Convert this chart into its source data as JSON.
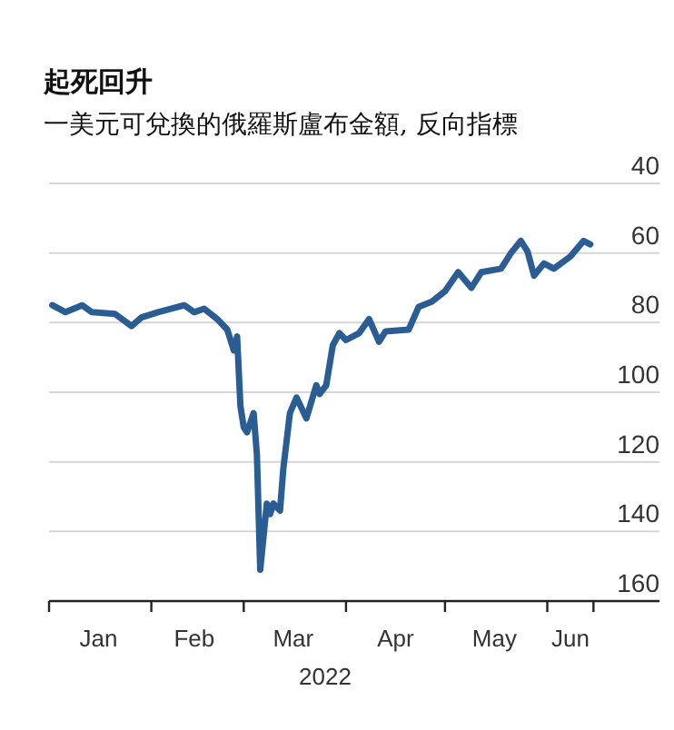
{
  "chart_data": {
    "type": "line",
    "title": "起死回升",
    "subtitle": "一美元可兌換的俄羅斯盧布金額, 反向指標",
    "xlabel": "2022",
    "x": [
      "2022-01-02",
      "2022-01-06",
      "2022-01-11",
      "2022-01-14",
      "2022-01-21",
      "2022-01-26",
      "2022-01-29",
      "2022-02-03",
      "2022-02-11",
      "2022-02-14",
      "2022-02-17",
      "2022-02-21",
      "2022-02-24",
      "2022-02-26",
      "2022-02-27",
      "2022-02-28",
      "2022-03-01",
      "2022-03-02",
      "2022-03-04",
      "2022-03-05",
      "2022-03-06",
      "2022-03-08",
      "2022-03-09",
      "2022-03-10",
      "2022-03-12",
      "2022-03-13",
      "2022-03-15",
      "2022-03-17",
      "2022-03-20",
      "2022-03-23",
      "2022-03-24",
      "2022-03-26",
      "2022-03-28",
      "2022-03-30",
      "2022-04-01",
      "2022-04-05",
      "2022-04-08",
      "2022-04-11",
      "2022-04-13",
      "2022-04-20",
      "2022-04-23",
      "2022-04-27",
      "2022-05-01",
      "2022-05-05",
      "2022-05-09",
      "2022-05-12",
      "2022-05-18",
      "2022-05-21",
      "2022-05-24",
      "2022-05-26",
      "2022-05-28",
      "2022-05-31",
      "2022-06-03",
      "2022-06-08",
      "2022-06-12",
      "2022-06-14"
    ],
    "series": [
      {
        "color": "#2a5d94",
        "values": [
          75,
          77,
          75,
          77,
          77.5,
          81,
          78.5,
          77,
          75,
          77,
          76,
          79,
          82,
          88,
          84,
          104,
          110,
          111.5,
          106,
          118,
          151,
          132,
          135,
          132,
          134,
          122,
          106,
          101.5,
          107.5,
          98,
          100.5,
          98,
          86.5,
          83,
          85,
          83,
          79,
          85.5,
          82.5,
          82,
          75.5,
          74,
          71,
          65.5,
          70,
          65.5,
          64.5,
          60,
          56.5,
          59.5,
          66.5,
          63,
          64.5,
          61,
          56.5,
          57.5
        ]
      }
    ],
    "xlim": [
      "2022-01-01",
      "2022-07-05"
    ],
    "xticks": [
      {
        "value": "2022-01-01",
        "label": null
      },
      {
        "value": "2022-02-01",
        "label": null
      },
      {
        "value": "2022-03-01",
        "label": null
      },
      {
        "value": "2022-04-01",
        "label": null
      },
      {
        "value": "2022-05-01",
        "label": null
      },
      {
        "value": "2022-06-01",
        "label": null
      },
      {
        "value": "2022-06-15",
        "label": null
      },
      {
        "value": "2022-01-16",
        "label": "Jan"
      },
      {
        "value": "2022-02-14",
        "label": "Feb"
      },
      {
        "value": "2022-03-16",
        "label": "Mar"
      },
      {
        "value": "2022-04-16",
        "label": "Apr"
      },
      {
        "value": "2022-05-16",
        "label": "May"
      },
      {
        "value": "2022-06-08",
        "label": "Jun"
      }
    ],
    "ylim": [
      160,
      40
    ],
    "yticks": [
      40,
      60,
      80,
      100,
      120,
      140,
      160
    ],
    "grid": "y",
    "marker": "none",
    "line_style": "solid"
  }
}
